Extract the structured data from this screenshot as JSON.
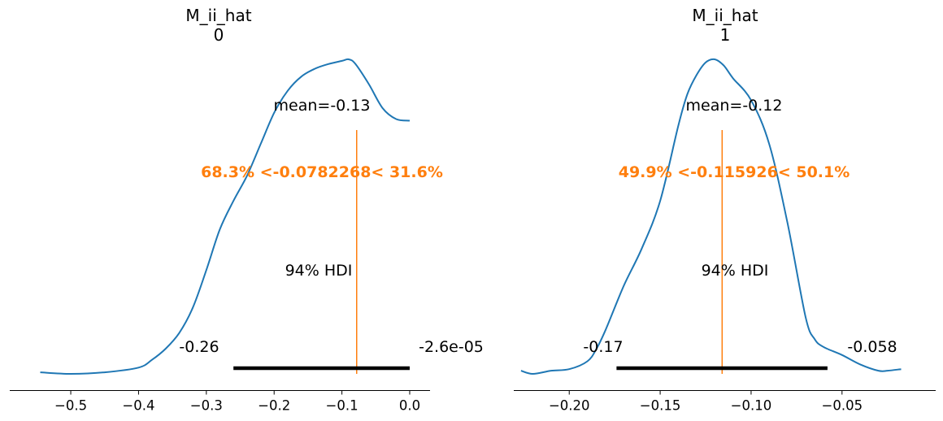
{
  "colors": {
    "kde": "#1f77b4",
    "reference": "#ff7f0e",
    "hdi": "#000000",
    "axis": "#000000"
  },
  "chart_data": [
    {
      "type": "line",
      "plot_kind": "posterior-kde",
      "title_line1": "M_ii_hat",
      "title_line2": "0",
      "xlim": [
        -0.59,
        0.03
      ],
      "ylim": [
        0,
        1
      ],
      "xticks": [
        -0.5,
        -0.4,
        -0.3,
        -0.2,
        -0.1,
        0.0
      ],
      "xtick_labels": [
        "−0.5",
        "−0.4",
        "−0.3",
        "−0.2",
        "−0.1",
        "0.0"
      ],
      "yaxis_visible": false,
      "grid": false,
      "kde": {
        "x": [
          -0.545,
          -0.5,
          -0.45,
          -0.4,
          -0.38,
          -0.36,
          -0.34,
          -0.32,
          -0.3,
          -0.28,
          -0.26,
          -0.24,
          -0.22,
          -0.2,
          -0.18,
          -0.16,
          -0.14,
          -0.12,
          -0.1,
          -0.09,
          -0.08,
          -0.06,
          -0.04,
          -0.02,
          0.0
        ],
        "y": [
          0.005,
          0.0,
          0.005,
          0.02,
          0.045,
          0.08,
          0.13,
          0.21,
          0.33,
          0.46,
          0.55,
          0.63,
          0.73,
          0.83,
          0.9,
          0.945,
          0.97,
          0.985,
          0.995,
          1.0,
          0.985,
          0.92,
          0.845,
          0.81,
          0.805
        ]
      },
      "mean_label": "mean=-0.13",
      "reference_value": -0.0782268,
      "reference_label": "68.3% <-0.0782268< 31.6%",
      "hdi_label": "94% HDI",
      "hdi": [
        -0.26,
        -2.6e-05
      ],
      "hdi_low_label": "-0.26",
      "hdi_high_label": "-2.6e-05"
    },
    {
      "type": "line",
      "plot_kind": "posterior-kde",
      "title_line1": "M_ii_hat",
      "title_line2": "1",
      "xlim": [
        -0.2305,
        0.0015
      ],
      "ylim": [
        0,
        1
      ],
      "xticks": [
        -0.2,
        -0.15,
        -0.1,
        -0.05
      ],
      "xtick_labels": [
        "−0.20",
        "−0.15",
        "−0.10",
        "−0.05"
      ],
      "yaxis_visible": false,
      "grid": false,
      "kde": {
        "x": [
          -0.2265,
          -0.22,
          -0.21,
          -0.2,
          -0.19,
          -0.185,
          -0.18,
          -0.17,
          -0.16,
          -0.15,
          -0.14,
          -0.135,
          -0.13,
          -0.125,
          -0.12,
          -0.115,
          -0.11,
          -0.1,
          -0.09,
          -0.08,
          -0.07,
          -0.065,
          -0.06,
          -0.05,
          -0.04,
          -0.03,
          -0.025,
          -0.0175
        ],
        "y": [
          0.01,
          0.0,
          0.01,
          0.015,
          0.04,
          0.08,
          0.14,
          0.28,
          0.4,
          0.55,
          0.79,
          0.89,
          0.95,
          0.99,
          1.0,
          0.98,
          0.94,
          0.87,
          0.73,
          0.48,
          0.18,
          0.11,
          0.085,
          0.06,
          0.03,
          0.01,
          0.01,
          0.015
        ]
      },
      "mean_label": "mean=-0.12",
      "reference_value": -0.115926,
      "reference_label": "49.9% <-0.115926< 50.1%",
      "hdi_label": "94% HDI",
      "hdi": [
        -0.174,
        -0.058
      ],
      "hdi_low_label": "-0.17",
      "hdi_high_label": "-0.058"
    }
  ]
}
